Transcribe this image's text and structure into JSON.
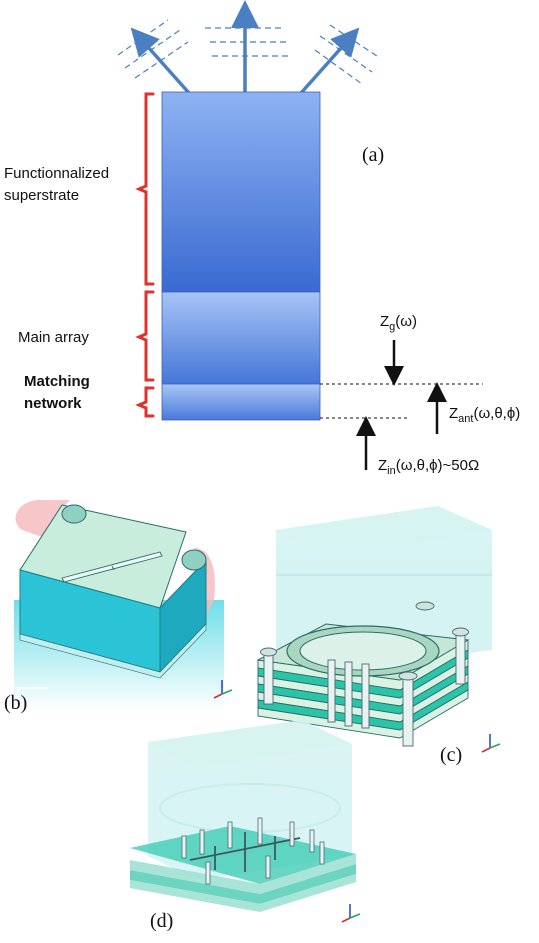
{
  "panel_a": {
    "label": "(a)",
    "layers": [
      {
        "name": "Functionnalized superstrate",
        "line1": "Functionnalized",
        "line2": "superstrate",
        "bold": false
      },
      {
        "name": "Main array",
        "bold": false
      },
      {
        "name": "Matching network",
        "line1": "Matching",
        "line2": "network",
        "bold": true
      }
    ],
    "impedances": {
      "zg": {
        "symbol": "Z",
        "sub": "g",
        "args": "(ω)"
      },
      "zant": {
        "symbol": "Z",
        "sub": "ant",
        "args": "(ω,θ,ϕ)"
      },
      "zin": {
        "symbol": "Z",
        "sub": "in",
        "args": "(ω,θ,ϕ)~50Ω"
      }
    }
  },
  "panel_b": {
    "label": "(b)"
  },
  "panel_c": {
    "label": "(c)"
  },
  "panel_d": {
    "label": "(d)"
  },
  "colors": {
    "stack_top": "#8fb4f0",
    "stack_bottom": "#3d6ed4",
    "arrow": "#4a7fc1",
    "bracket": "#e0312c",
    "mint": "#c8ecdc",
    "cyan": "#23c8d8"
  }
}
